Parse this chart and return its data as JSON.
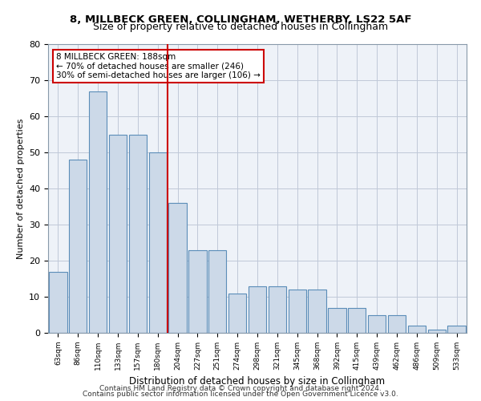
{
  "title1": "8, MILLBECK GREEN, COLLINGHAM, WETHERBY, LS22 5AF",
  "title2": "Size of property relative to detached houses in Collingham",
  "xlabel": "Distribution of detached houses by size in Collingham",
  "ylabel": "Number of detached properties",
  "categories": [
    "63sqm",
    "86sqm",
    "110sqm",
    "133sqm",
    "157sqm",
    "180sqm",
    "204sqm",
    "227sqm",
    "251sqm",
    "274sqm",
    "298sqm",
    "321sqm",
    "345sqm",
    "368sqm",
    "392sqm",
    "415sqm",
    "439sqm",
    "462sqm",
    "486sqm",
    "509sqm",
    "533sqm"
  ],
  "bar_values": [
    17,
    48,
    67,
    55,
    55,
    50,
    36,
    23,
    23,
    11,
    13,
    13,
    12,
    12,
    7,
    7,
    5,
    5,
    2,
    1,
    2
  ],
  "bar_color": "#ccd9e8",
  "bar_edge_color": "#5b8db8",
  "vline_pos": 5.5,
  "vline_color": "#cc0000",
  "annotation_box_color": "#cc0000",
  "annotation_line1": "8 MILLBECK GREEN: 188sqm",
  "annotation_line2": "← 70% of detached houses are smaller (246)",
  "annotation_line3": "30% of semi-detached houses are larger (106) →",
  "ylim": [
    0,
    80
  ],
  "yticks": [
    0,
    10,
    20,
    30,
    40,
    50,
    60,
    70,
    80
  ],
  "grid_color": "#c0c8d8",
  "footer1": "Contains HM Land Registry data © Crown copyright and database right 2024.",
  "footer2": "Contains public sector information licensed under the Open Government Licence v3.0.",
  "bg_color": "#eef2f8"
}
